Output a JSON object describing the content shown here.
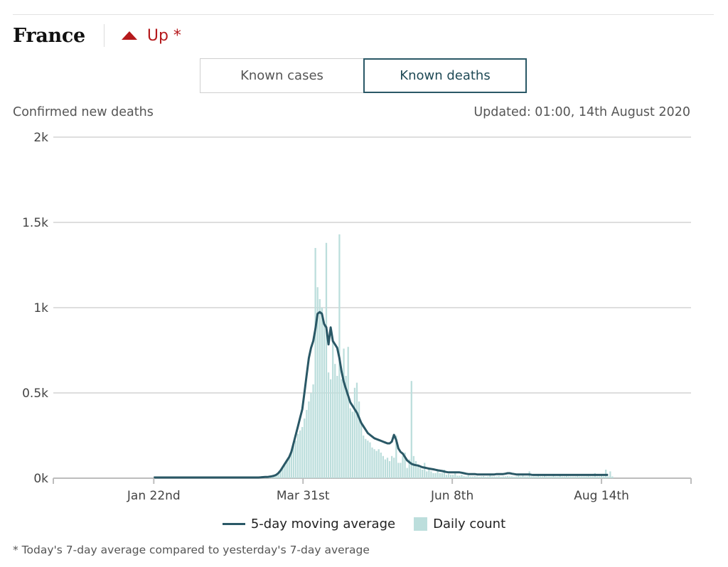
{
  "header": {
    "country": "France",
    "trend_label": "Up *"
  },
  "toggle": {
    "cases_label": "Known cases",
    "deaths_label": "Known deaths",
    "active": "Known deaths"
  },
  "subtitle": "Confirmed new deaths",
  "updated": "Updated: 01:00, 14th August 2020",
  "footnote": "* Today's 7-day average compared to yesterday's 7-day average",
  "colors": {
    "line": "#2a5866",
    "bars": "#bcdedc",
    "trend": "#b5191c"
  },
  "chart_data": {
    "type": "bar+line",
    "x_start": "2020-01-22",
    "x_end": "2020-08-14",
    "xlim": [
      "2019-12-07",
      "2020-09-24"
    ],
    "x_ticks": [
      "Jan 22nd",
      "Mar 31st",
      "Jun 8th",
      "Aug 14th"
    ],
    "ylim": [
      0,
      2000
    ],
    "y_ticks": [
      "0k",
      "0.5k",
      "1k",
      "1.5k",
      "2k"
    ],
    "grid": true,
    "legend": [
      "5-day moving average",
      "Daily count"
    ],
    "series": [
      {
        "name": "Daily count",
        "kind": "bar",
        "values": [
          0,
          0,
          0,
          0,
          0,
          0,
          0,
          0,
          0,
          0,
          0,
          0,
          0,
          0,
          0,
          0,
          0,
          0,
          0,
          0,
          0,
          0,
          0,
          0,
          0,
          0,
          0,
          0,
          0,
          0,
          0,
          0,
          0,
          0,
          0,
          0,
          0,
          0,
          0,
          0,
          0,
          0,
          0,
          0,
          0,
          0,
          0,
          0,
          0,
          1,
          2,
          3,
          3,
          5,
          7,
          10,
          15,
          25,
          40,
          60,
          80,
          100,
          120,
          150,
          200,
          220,
          260,
          280,
          300,
          350,
          400,
          450,
          500,
          550,
          1350,
          1120,
          1050,
          1000,
          900,
          1380,
          620,
          580,
          800,
          670,
          600,
          1430,
          580,
          760,
          600,
          770,
          410,
          390,
          530,
          560,
          450,
          320,
          250,
          230,
          220,
          210,
          180,
          170,
          160,
          170,
          150,
          130,
          110,
          120,
          100,
          130,
          120,
          250,
          90,
          90,
          130,
          150,
          60,
          110,
          570,
          130,
          100,
          80,
          60,
          50,
          90,
          40,
          60,
          40,
          30,
          30,
          45,
          30,
          30,
          50,
          20,
          25,
          20,
          20,
          30,
          15,
          15,
          20,
          12,
          10,
          15,
          10,
          10,
          12,
          10,
          8,
          10,
          12,
          8,
          10,
          15,
          10,
          10,
          10,
          12,
          8,
          10,
          10,
          12,
          10,
          10,
          8,
          10,
          15,
          10,
          15,
          10,
          10,
          40,
          10,
          10,
          10,
          20,
          10,
          10,
          15,
          10,
          10,
          10,
          20,
          10,
          10,
          15,
          10,
          10,
          12,
          10,
          10,
          10,
          10,
          12,
          10,
          10,
          10,
          10,
          12,
          10,
          10,
          30,
          10,
          10,
          15,
          10,
          50,
          10,
          40,
          10
        ]
      },
      {
        "name": "5-day moving average",
        "kind": "line",
        "values": [
          0,
          0,
          0,
          0,
          0,
          0,
          0,
          0,
          0,
          0,
          0,
          0,
          0,
          0,
          0,
          0,
          0,
          0,
          0,
          0,
          0,
          0,
          0,
          0,
          0,
          0,
          0,
          0,
          0,
          0,
          0,
          0,
          0,
          0,
          0,
          0,
          0,
          0,
          0,
          0,
          0,
          0,
          0,
          0,
          0,
          0,
          0,
          0,
          0,
          1,
          2,
          3,
          3,
          5,
          7,
          10,
          15,
          25,
          40,
          60,
          80,
          100,
          120,
          150,
          200,
          250,
          300,
          350,
          400,
          500,
          600,
          700,
          760,
          800,
          870,
          960,
          970,
          960,
          900,
          880,
          780,
          880,
          800,
          780,
          760,
          700,
          620,
          560,
          520,
          480,
          440,
          420,
          400,
          380,
          350,
          320,
          300,
          280,
          260,
          250,
          240,
          230,
          225,
          220,
          215,
          210,
          205,
          200,
          200,
          210,
          250,
          220,
          170,
          150,
          140,
          120,
          100,
          90,
          80,
          75,
          72,
          70,
          65,
          60,
          58,
          55,
          52,
          50,
          48,
          45,
          42,
          40,
          38,
          35,
          32,
          30,
          30,
          30,
          30,
          30,
          30,
          28,
          25,
          22,
          20,
          20,
          20,
          20,
          18,
          18,
          18,
          18,
          18,
          18,
          18,
          18,
          18,
          20,
          20,
          20,
          20,
          22,
          25,
          25,
          22,
          20,
          18,
          18,
          18,
          18,
          18,
          18,
          18,
          16,
          15,
          15,
          15,
          15,
          15,
          15,
          15,
          15,
          15,
          15,
          15,
          15,
          15,
          15,
          15,
          15,
          15,
          15,
          15,
          15,
          15,
          15,
          15,
          15,
          15,
          15,
          15,
          15,
          15,
          15,
          15,
          15,
          15,
          15,
          15
        ]
      }
    ]
  }
}
